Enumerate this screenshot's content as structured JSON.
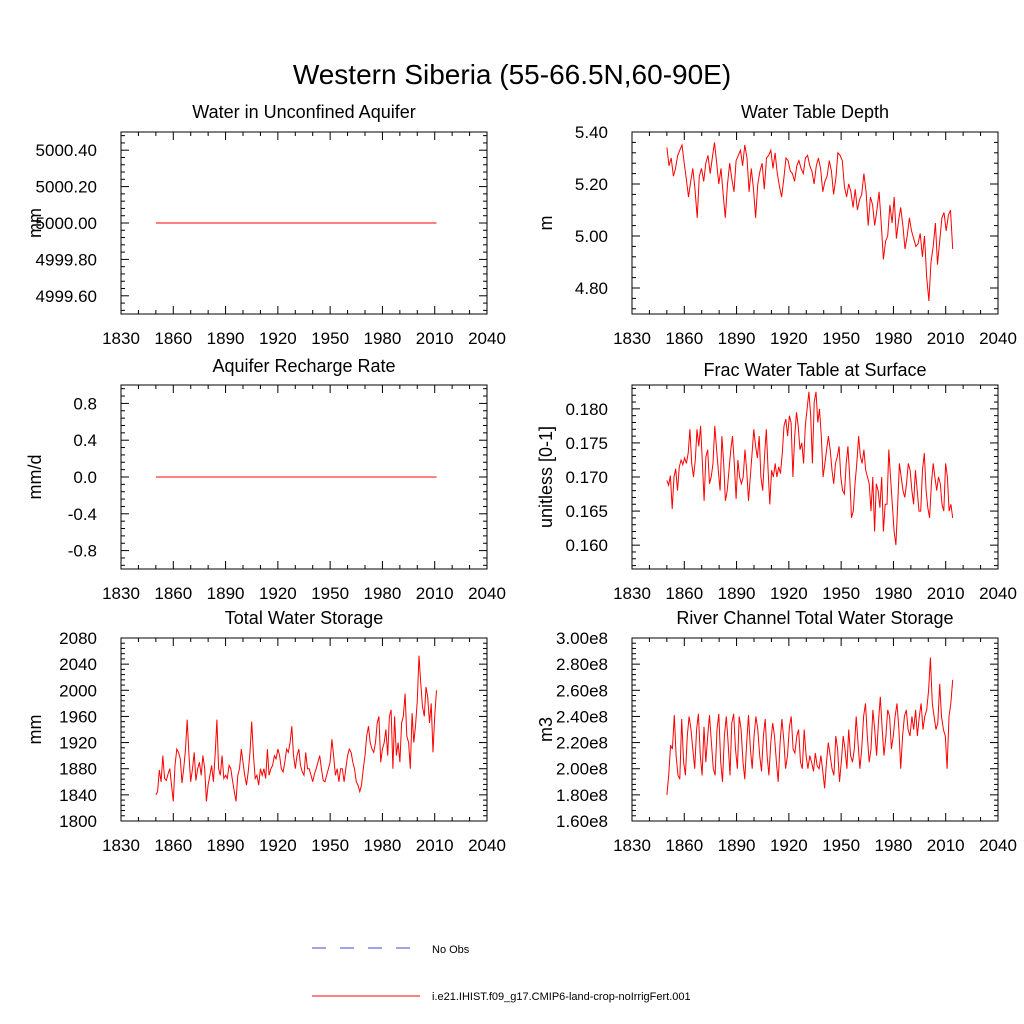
{
  "figure": {
    "title": "Western Siberia (55-66.5N,60-90E)"
  },
  "legend": {
    "entries": [
      {
        "label": "No Obs",
        "color": "#4444cc",
        "style": "dashed"
      },
      {
        "label": "i.e21.IHIST.f09_g17.CMIP6-land-crop-noIrrigFert.001",
        "color": "#ff0000",
        "style": "solid"
      }
    ]
  },
  "chart_data": [
    {
      "type": "line",
      "title": "Water in Unconfined Aquifer",
      "ylabel": "mm",
      "xlim": [
        1830,
        2040
      ],
      "xticks": [
        1830,
        1860,
        1890,
        1920,
        1950,
        1980,
        2010,
        2040
      ],
      "ylim": [
        4999.5,
        5000.5
      ],
      "yticks": [
        "4999.60",
        "4999.80",
        "5000.00",
        "5000.20",
        "5000.40"
      ],
      "ytick_values": [
        4999.6,
        4999.8,
        5000.0,
        5000.2,
        5000.4
      ],
      "series": [
        {
          "color": "#ff0000",
          "x_start": 1850,
          "x_end": 2011,
          "values": [
            5000.0,
            5000.0
          ]
        }
      ]
    },
    {
      "type": "line",
      "title": "Water Table Depth",
      "ylabel": "m",
      "xlim": [
        1830,
        2040
      ],
      "xticks": [
        1830,
        1860,
        1890,
        1920,
        1950,
        1980,
        2010,
        2040
      ],
      "ylim": [
        4.7,
        5.4
      ],
      "yticks": [
        "4.80",
        "5.00",
        "5.20",
        "5.40"
      ],
      "ytick_values": [
        4.8,
        5.0,
        5.2,
        5.4
      ],
      "series": [
        {
          "color": "#ff0000",
          "x_start": 1850,
          "x_end": 2014,
          "values": [
            5.34,
            5.27,
            5.3,
            5.23,
            5.26,
            5.31,
            5.33,
            5.35,
            5.28,
            5.22,
            5.15,
            5.21,
            5.26,
            5.18,
            5.07,
            5.23,
            5.26,
            5.21,
            5.28,
            5.31,
            5.24,
            5.3,
            5.36,
            5.28,
            5.2,
            5.26,
            5.16,
            5.07,
            5.2,
            5.28,
            5.22,
            5.17,
            5.29,
            5.31,
            5.33,
            5.27,
            5.35,
            5.3,
            5.17,
            5.26,
            5.18,
            5.07,
            5.2,
            5.25,
            5.28,
            5.18,
            5.3,
            5.31,
            5.33,
            5.26,
            5.32,
            5.24,
            5.19,
            5.15,
            5.22,
            5.3,
            5.29,
            5.25,
            5.24,
            5.21,
            5.27,
            5.29,
            5.26,
            5.24,
            5.3,
            5.31,
            5.27,
            5.25,
            5.2,
            5.27,
            5.3,
            5.26,
            5.17,
            5.21,
            5.23,
            5.29,
            5.25,
            5.16,
            5.22,
            5.32,
            5.31,
            5.29,
            5.19,
            5.15,
            5.2,
            5.17,
            5.11,
            5.18,
            5.1,
            5.14,
            5.16,
            5.24,
            5.17,
            5.04,
            5.15,
            5.12,
            5.04,
            5.1,
            5.17,
            5.05,
            4.91,
            4.98,
            5.0,
            5.12,
            5.05,
            5.15,
            4.99,
            5.06,
            5.11,
            5.04,
            4.95,
            5.0,
            5.07,
            5.02,
            4.99,
            4.96,
            4.97,
            5.01,
            4.92,
            5.0,
            4.84,
            4.75,
            4.9,
            4.96,
            5.05,
            4.89,
            4.98,
            5.07,
            5.09,
            5.02,
            5.08,
            5.1,
            4.95
          ]
        }
      ]
    },
    {
      "type": "line",
      "title": "Aquifer Recharge Rate",
      "ylabel": "mm/d",
      "xlim": [
        1830,
        2040
      ],
      "xticks": [
        1830,
        1860,
        1890,
        1920,
        1950,
        1980,
        2010,
        2040
      ],
      "ylim": [
        -1.0,
        1.0
      ],
      "yticks": [
        "-0.8",
        "-0.4",
        "0.0",
        "0.4",
        "0.8"
      ],
      "ytick_values": [
        -0.8,
        -0.4,
        0.0,
        0.4,
        0.8
      ],
      "series": [
        {
          "color": "#ff0000",
          "x_start": 1850,
          "x_end": 2011,
          "values": [
            0.0,
            0.0
          ]
        }
      ]
    },
    {
      "type": "line",
      "title": "Frac Water Table at Surface",
      "ylabel": "unitless [0-1]",
      "xlim": [
        1830,
        2040
      ],
      "xticks": [
        1830,
        1860,
        1890,
        1920,
        1950,
        1980,
        2010,
        2040
      ],
      "ylim": [
        0.1565,
        0.1835
      ],
      "yticks": [
        "0.160",
        "0.165",
        "0.170",
        "0.175",
        "0.180"
      ],
      "ytick_values": [
        0.16,
        0.165,
        0.17,
        0.175,
        0.18
      ],
      "series": [
        {
          "color": "#ff0000",
          "x_start": 1850,
          "x_end": 2014,
          "values": [
            0.1695,
            0.1688,
            0.1702,
            0.1653,
            0.17,
            0.1712,
            0.168,
            0.1715,
            0.1725,
            0.1718,
            0.1728,
            0.172,
            0.1735,
            0.177,
            0.172,
            0.17,
            0.1725,
            0.177,
            0.1745,
            0.1775,
            0.172,
            0.1665,
            0.173,
            0.174,
            0.169,
            0.17,
            0.172,
            0.1775,
            0.174,
            0.171,
            0.168,
            0.176,
            0.172,
            0.1665,
            0.168,
            0.171,
            0.174,
            0.176,
            0.172,
            0.1668,
            0.1725,
            0.17,
            0.169,
            0.17,
            0.174,
            0.171,
            0.1665,
            0.17,
            0.1735,
            0.177,
            0.1745,
            0.1728,
            0.176,
            0.17,
            0.168,
            0.173,
            0.177,
            0.171,
            0.166,
            0.171,
            0.17,
            0.172,
            0.17,
            0.1715,
            0.1705,
            0.1735,
            0.1775,
            0.1785,
            0.176,
            0.179,
            0.178,
            0.17,
            0.176,
            0.1795,
            0.1775,
            0.174,
            0.175,
            0.172,
            0.1775,
            0.18,
            0.1825,
            0.179,
            0.172,
            0.181,
            0.1825,
            0.178,
            0.18,
            0.176,
            0.17,
            0.172,
            0.174,
            0.176,
            0.174,
            0.171,
            0.169,
            0.172,
            0.173,
            0.1745,
            0.17,
            0.168,
            0.1675,
            0.172,
            0.1745,
            0.17,
            0.164,
            0.165,
            0.169,
            0.172,
            0.176,
            0.173,
            0.172,
            0.174,
            0.171,
            0.17,
            0.169,
            0.165,
            0.17,
            0.162,
            0.169,
            0.168,
            0.1655,
            0.17,
            0.162,
            0.166,
            0.166,
            0.174,
            0.17,
            0.166,
            0.162,
            0.16,
            0.166,
            0.172,
            0.17,
            0.168,
            0.167,
            0.169,
            0.172,
            0.171,
            0.168,
            0.166,
            0.171,
            0.168,
            0.165,
            0.165,
            0.171,
            0.1735,
            0.168,
            0.1655,
            0.164,
            0.169,
            0.172,
            0.17,
            0.168,
            0.17,
            0.169,
            0.166,
            0.165,
            0.172,
            0.17,
            0.165,
            0.166,
            0.164
          ]
        }
      ]
    },
    {
      "type": "line",
      "title": "Total Water Storage",
      "ylabel": "mm",
      "xlim": [
        1830,
        2040
      ],
      "xticks": [
        1830,
        1860,
        1890,
        1920,
        1950,
        1980,
        2010,
        2040
      ],
      "ylim": [
        1800,
        2080
      ],
      "yticks": [
        "1800",
        "1840",
        "1880",
        "1920",
        "1960",
        "2000",
        "2040",
        "2080"
      ],
      "ytick_values": [
        1800,
        1840,
        1880,
        1920,
        1960,
        2000,
        2040,
        2080
      ],
      "series": [
        {
          "color": "#ff0000",
          "x_start": 1850,
          "x_end": 2011,
          "values": [
            1840,
            1845,
            1878,
            1860,
            1900,
            1865,
            1862,
            1872,
            1880,
            1855,
            1830,
            1885,
            1910,
            1905,
            1895,
            1858,
            1880,
            1910,
            1955,
            1900,
            1860,
            1880,
            1905,
            1862,
            1880,
            1890,
            1870,
            1900,
            1880,
            1830,
            1855,
            1870,
            1885,
            1860,
            1900,
            1955,
            1880,
            1870,
            1900,
            1865,
            1870,
            1865,
            1885,
            1880,
            1862,
            1845,
            1830,
            1870,
            1880,
            1910,
            1890,
            1870,
            1855,
            1875,
            1905,
            1952,
            1900,
            1865,
            1870,
            1855,
            1880,
            1870,
            1880,
            1865,
            1910,
            1870,
            1880,
            1885,
            1900,
            1895,
            1910,
            1900,
            1880,
            1875,
            1890,
            1910,
            1905,
            1920,
            1945,
            1900,
            1880,
            1900,
            1910,
            1885,
            1875,
            1870,
            1905,
            1880,
            1880,
            1870,
            1860,
            1872,
            1880,
            1890,
            1900,
            1880,
            1862,
            1860,
            1870,
            1880,
            1890,
            1925,
            1900,
            1870,
            1880,
            1860,
            1880,
            1880,
            1860,
            1880,
            1900,
            1910,
            1905,
            1890,
            1880,
            1860,
            1855,
            1845,
            1855,
            1880,
            1900,
            1930,
            1945,
            1920,
            1910,
            1905,
            1920,
            1950,
            1960,
            1890,
            1910,
            1920,
            1940,
            1900,
            1960,
            1970,
            1880,
            1960,
            1900,
            1920,
            1890,
            1950,
            1960,
            1995,
            1930,
            1920,
            1880,
            1965,
            1920,
            1945,
            1985,
            2053,
            2010,
            1975,
            1960,
            2005,
            1990,
            1950,
            1980,
            1905,
            1960,
            2000
          ]
        }
      ]
    },
    {
      "type": "line",
      "title": "River Channel Total Water Storage",
      "ylabel": "m3",
      "xlim": [
        1830,
        2040
      ],
      "xticks": [
        1830,
        1860,
        1890,
        1920,
        1950,
        1980,
        2010,
        2040
      ],
      "ylim": [
        160000000,
        300000000
      ],
      "yticks": [
        "1.60e8",
        "1.80e8",
        "2.00e8",
        "2.20e8",
        "2.40e8",
        "2.60e8",
        "2.80e8",
        "3.00e8"
      ],
      "ytick_values": [
        160000000,
        180000000,
        200000000,
        220000000,
        240000000,
        260000000,
        280000000,
        300000000
      ],
      "series": [
        {
          "color": "#ff0000",
          "x_start": 1850,
          "x_end": 2014,
          "values": [
            180000000,
            195000000,
            218000000,
            215000000,
            241000000,
            210000000,
            195000000,
            192000000,
            238000000,
            205000000,
            195000000,
            225000000,
            240000000,
            230000000,
            215000000,
            200000000,
            230000000,
            242000000,
            210000000,
            195000000,
            232000000,
            205000000,
            225000000,
            241000000,
            220000000,
            200000000,
            195000000,
            230000000,
            242000000,
            205000000,
            190000000,
            225000000,
            240000000,
            220000000,
            195000000,
            235000000,
            242000000,
            215000000,
            200000000,
            240000000,
            230000000,
            205000000,
            192000000,
            220000000,
            241000000,
            215000000,
            200000000,
            225000000,
            240000000,
            230000000,
            210000000,
            198000000,
            225000000,
            238000000,
            210000000,
            195000000,
            220000000,
            235000000,
            225000000,
            205000000,
            190000000,
            220000000,
            238000000,
            222000000,
            200000000,
            210000000,
            232000000,
            240000000,
            215000000,
            212000000,
            225000000,
            230000000,
            205000000,
            200000000,
            230000000,
            210000000,
            200000000,
            210000000,
            205000000,
            198000000,
            212000000,
            202000000,
            200000000,
            210000000,
            198000000,
            185000000,
            205000000,
            220000000,
            210000000,
            200000000,
            195000000,
            225000000,
            215000000,
            190000000,
            205000000,
            225000000,
            215000000,
            200000000,
            230000000,
            210000000,
            205000000,
            215000000,
            240000000,
            220000000,
            200000000,
            215000000,
            240000000,
            250000000,
            225000000,
            205000000,
            215000000,
            245000000,
            230000000,
            210000000,
            235000000,
            255000000,
            230000000,
            210000000,
            225000000,
            245000000,
            240000000,
            215000000,
            225000000,
            240000000,
            250000000,
            230000000,
            200000000,
            225000000,
            240000000,
            245000000,
            230000000,
            225000000,
            240000000,
            230000000,
            245000000,
            225000000,
            240000000,
            250000000,
            230000000,
            240000000,
            245000000,
            260000000,
            285000000,
            250000000,
            240000000,
            230000000,
            235000000,
            265000000,
            240000000,
            230000000,
            225000000,
            200000000,
            240000000,
            250000000,
            268000000
          ]
        }
      ]
    }
  ]
}
